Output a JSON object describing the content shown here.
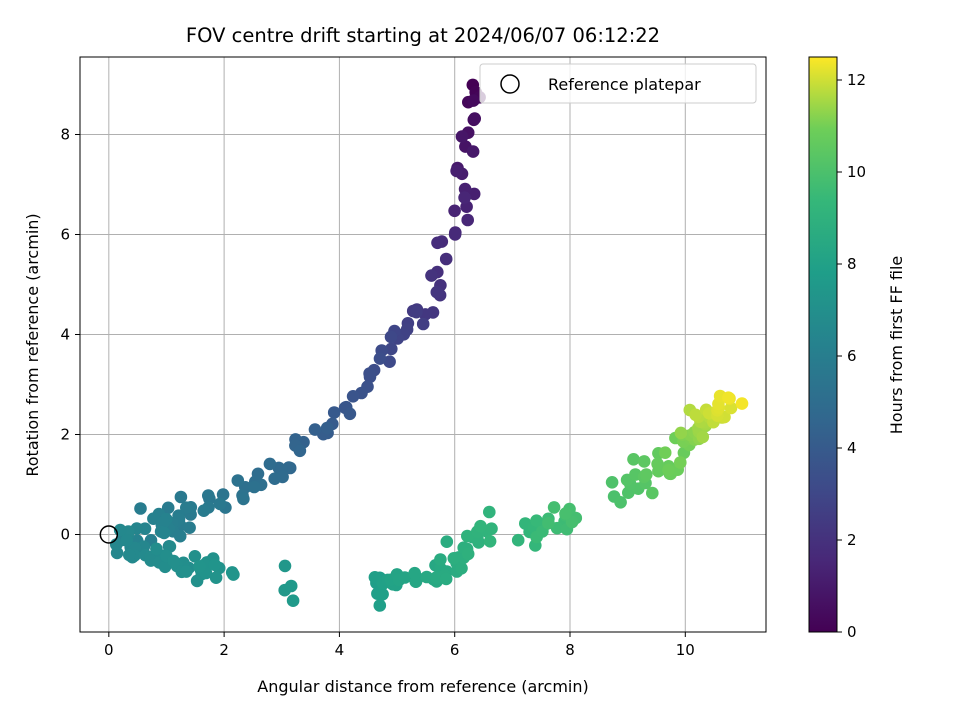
{
  "chart_data": {
    "type": "scatter",
    "title": "FOV centre drift starting at 2024/06/07 06:12:22",
    "xlabel": "Angular distance from reference (arcmin)",
    "ylabel": "Rotation from reference (arcmin)",
    "xlim": [
      -0.5,
      11.4
    ],
    "ylim": [
      -1.95,
      9.55
    ],
    "xticks": [
      0,
      2,
      4,
      6,
      8,
      10
    ],
    "yticks": [
      0,
      2,
      4,
      6,
      8
    ],
    "grid": true,
    "legend": {
      "placement": "top-right",
      "entries": [
        "Reference platepar"
      ]
    },
    "reference_point": {
      "x": 0,
      "y": 0
    },
    "colorbar": {
      "label": "Hours from first FF file",
      "colormap": "viridis",
      "range": [
        0,
        12.5
      ],
      "ticks": [
        0,
        2,
        4,
        6,
        8,
        10,
        12
      ]
    },
    "series": [
      {
        "segments": [
          {
            "h": [
              0.0,
              1.2
            ],
            "x0": 6.4,
            "y0": 9.05,
            "x1": 6.1,
            "y1": 7.2,
            "n": 14,
            "sx": 0.08,
            "sy": 0.15
          },
          {
            "h": [
              1.2,
              2.2
            ],
            "x0": 6.15,
            "y0": 7.0,
            "x1": 5.65,
            "y1": 4.65,
            "n": 16,
            "sx": 0.1,
            "sy": 0.15
          },
          {
            "h": [
              2.2,
              3.4
            ],
            "x0": 5.6,
            "y0": 4.7,
            "x1": 4.5,
            "y1": 3.3,
            "n": 18,
            "sx": 0.12,
            "sy": 0.15
          },
          {
            "h": [
              3.4,
              4.8
            ],
            "x0": 4.5,
            "y0": 3.0,
            "x1": 3.0,
            "y1": 1.3,
            "n": 20,
            "sx": 0.1,
            "sy": 0.12
          },
          {
            "h": [
              4.8,
              5.8
            ],
            "x0": 3.0,
            "y0": 1.3,
            "x1": 1.5,
            "y1": 0.5,
            "n": 20,
            "sx": 0.12,
            "sy": 0.1
          },
          {
            "h": [
              5.8,
              6.6
            ],
            "x0": 1.5,
            "y0": 0.4,
            "x1": 0.2,
            "y1": -0.2,
            "n": 35,
            "sx": 0.18,
            "sy": 0.15
          },
          {
            "h": [
              6.6,
              7.3
            ],
            "x0": 0.3,
            "y0": -0.3,
            "x1": 2.1,
            "y1": -0.85,
            "n": 35,
            "sx": 0.15,
            "sy": 0.12
          },
          {
            "h": [
              7.4,
              7.6
            ],
            "x0": 3.0,
            "y0": -0.75,
            "x1": 3.15,
            "y1": -1.25,
            "n": 4,
            "sx": 0.06,
            "sy": 0.08
          },
          {
            "h": [
              7.8,
              8.6
            ],
            "x0": 4.5,
            "y0": -1.0,
            "x1": 5.9,
            "y1": -0.75,
            "n": 28,
            "sx": 0.12,
            "sy": 0.1
          },
          {
            "h": [
              8.6,
              9.2
            ],
            "x0": 5.8,
            "y0": -0.6,
            "x1": 6.6,
            "y1": 0.1,
            "n": 20,
            "sx": 0.1,
            "sy": 0.15
          },
          {
            "h": [
              9.2,
              9.9
            ],
            "x0": 7.2,
            "y0": 0.0,
            "x1": 8.1,
            "y1": 0.45,
            "n": 22,
            "sx": 0.12,
            "sy": 0.15
          },
          {
            "h": [
              10.0,
              11.0
            ],
            "x0": 8.8,
            "y0": 0.8,
            "x1": 10.0,
            "y1": 1.6,
            "n": 26,
            "sx": 0.12,
            "sy": 0.15
          },
          {
            "h": [
              11.0,
              12.4
            ],
            "x0": 9.9,
            "y0": 1.8,
            "x1": 10.8,
            "y1": 2.75,
            "n": 34,
            "sx": 0.12,
            "sy": 0.12
          }
        ],
        "outliers": [
          {
            "x": 4.7,
            "y": -1.42,
            "h": 7.9
          },
          {
            "x": 0.55,
            "y": 0.52,
            "h": 5.9
          },
          {
            "x": 1.25,
            "y": 0.75,
            "h": 5.7
          },
          {
            "x": 8.1,
            "y": 0.33,
            "h": 9.8
          },
          {
            "x": 6.6,
            "y": 0.45,
            "h": 9.1
          }
        ]
      }
    ]
  }
}
